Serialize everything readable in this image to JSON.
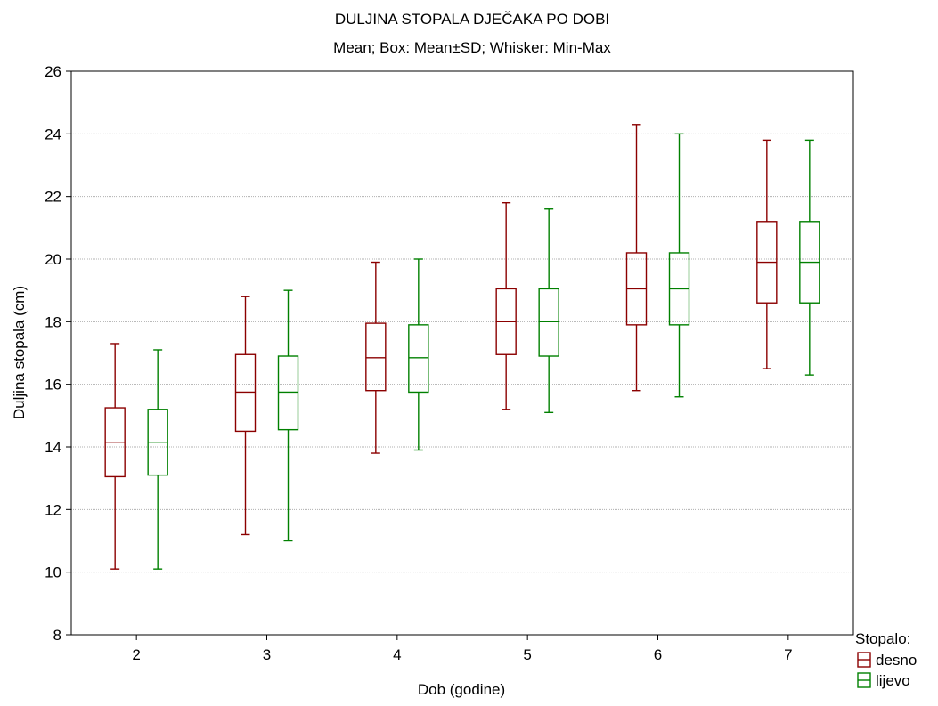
{
  "chart_data": {
    "type": "box",
    "title": "DULJINA STOPALA DJEČAKA PO DOBI",
    "subtitle": "Mean; Box: Mean±SD; Whisker: Min-Max",
    "xlabel": "Dob (godine)",
    "ylabel": "Duljina stopala (cm)",
    "ylim": [
      8,
      26
    ],
    "yticks": [
      8,
      10,
      12,
      14,
      16,
      18,
      20,
      22,
      24,
      26
    ],
    "grid": true,
    "categories": [
      "2",
      "3",
      "4",
      "5",
      "6",
      "7"
    ],
    "legend": {
      "title": "Stopalo:",
      "position": "bottom-right"
    },
    "series": [
      {
        "name": "desno",
        "color": "#8b0000",
        "stats": [
          {
            "min": 10.1,
            "q1": 13.05,
            "mean": 14.15,
            "q3": 15.25,
            "max": 17.3
          },
          {
            "min": 11.2,
            "q1": 14.5,
            "mean": 15.75,
            "q3": 16.95,
            "max": 18.8
          },
          {
            "min": 13.8,
            "q1": 15.8,
            "mean": 16.85,
            "q3": 17.95,
            "max": 19.9
          },
          {
            "min": 15.2,
            "q1": 16.95,
            "mean": 18.0,
            "q3": 19.05,
            "max": 21.8
          },
          {
            "min": 15.8,
            "q1": 17.9,
            "mean": 19.05,
            "q3": 20.2,
            "max": 24.3
          },
          {
            "min": 16.5,
            "q1": 18.6,
            "mean": 19.9,
            "q3": 21.2,
            "max": 23.8
          }
        ]
      },
      {
        "name": "lijevo",
        "color": "#008000",
        "stats": [
          {
            "min": 10.1,
            "q1": 13.1,
            "mean": 14.15,
            "q3": 15.2,
            "max": 17.1
          },
          {
            "min": 11.0,
            "q1": 14.55,
            "mean": 15.75,
            "q3": 16.9,
            "max": 19.0
          },
          {
            "min": 13.9,
            "q1": 15.75,
            "mean": 16.85,
            "q3": 17.9,
            "max": 20.0
          },
          {
            "min": 15.1,
            "q1": 16.9,
            "mean": 18.0,
            "q3": 19.05,
            "max": 21.6
          },
          {
            "min": 15.6,
            "q1": 17.9,
            "mean": 19.05,
            "q3": 20.2,
            "max": 24.0
          },
          {
            "min": 16.3,
            "q1": 18.6,
            "mean": 19.9,
            "q3": 21.2,
            "max": 23.8
          }
        ]
      }
    ]
  }
}
